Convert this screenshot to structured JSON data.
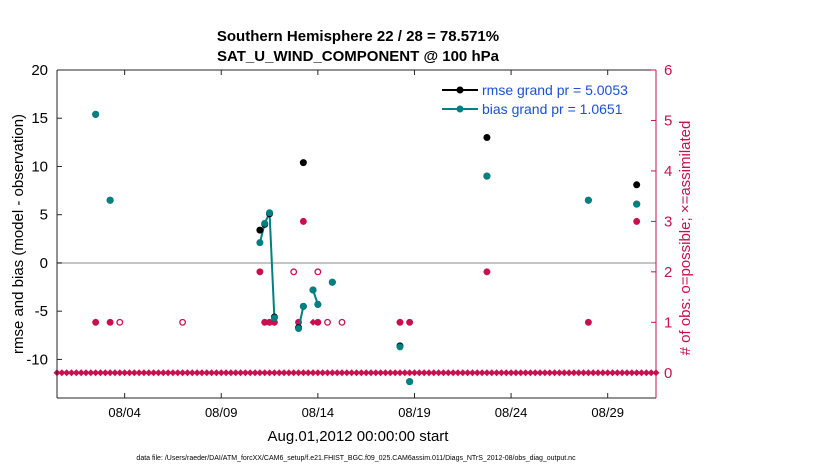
{
  "chart_data": {
    "type": "scatter",
    "title": "Southern Hemisphere 22 / 28 = 78.571%",
    "subtitle": "SAT_U_WIND_COMPONENT @ 100 hPa",
    "xlabel": "Aug.01,2012 00:00:00 start",
    "ylabel": "rmse and bias (model - observation)",
    "ylabel_right": "# of obs: o=possible; ×=assimilated",
    "xlim": [
      0.5,
      31.5
    ],
    "ylim": [
      -14,
      20
    ],
    "ylim_right": [
      -0.5,
      6
    ],
    "x_ticks": [
      4,
      9,
      14,
      19,
      24,
      29
    ],
    "x_tick_labels": [
      "08/04",
      "08/09",
      "08/14",
      "08/19",
      "08/24",
      "08/29"
    ],
    "y_ticks": [
      -10,
      -5,
      0,
      5,
      10,
      15,
      20
    ],
    "y_ticks_right": [
      0,
      1,
      2,
      3,
      4,
      5,
      6
    ],
    "zero_line": 0,
    "legend_position": "top-right",
    "colors": {
      "rmse": "#000000",
      "bias": "#008080",
      "obs": "#c8104e",
      "legend_text": "#1b4fd8",
      "zero_line": "#b0b0b0"
    },
    "series": [
      {
        "name": "rmse grand pr = 5.0053",
        "points": [
          [
            2.5,
            15.4
          ],
          [
            3.25,
            6.5
          ],
          [
            11.0,
            3.4
          ],
          [
            11.25,
            4.0
          ],
          [
            11.5,
            5.1
          ],
          [
            11.75,
            -5.6
          ],
          [
            13.0,
            -6.7
          ],
          [
            13.25,
            10.4
          ],
          [
            13.25,
            -4.5
          ],
          [
            13.75,
            -2.8
          ],
          [
            14.0,
            -4.3
          ],
          [
            14.75,
            -2.0
          ],
          [
            18.25,
            -8.6
          ],
          [
            18.75,
            -12.3
          ],
          [
            22.75,
            13.0
          ],
          [
            22.75,
            9.0
          ],
          [
            28.0,
            6.5
          ],
          [
            30.5,
            8.1
          ],
          [
            30.5,
            6.1
          ]
        ]
      },
      {
        "name": "bias grand pr = 1.0651",
        "points": [
          [
            2.5,
            15.4
          ],
          [
            3.25,
            6.5
          ],
          [
            11.0,
            2.1
          ],
          [
            11.25,
            4.1
          ],
          [
            11.5,
            5.2
          ],
          [
            11.75,
            -5.7
          ],
          [
            13.0,
            -6.8
          ],
          [
            13.25,
            -4.5
          ],
          [
            13.75,
            -2.8
          ],
          [
            14.0,
            -4.3
          ],
          [
            14.75,
            -2.0
          ],
          [
            18.25,
            -8.7
          ],
          [
            18.75,
            -12.3
          ],
          [
            22.75,
            9.0
          ],
          [
            28.0,
            6.5
          ],
          [
            30.5,
            6.1
          ]
        ],
        "line_segments": [
          [
            [
              11.0,
              2.1
            ],
            [
              11.25,
              4.1
            ],
            [
              11.5,
              5.2
            ],
            [
              11.75,
              -5.7
            ]
          ],
          [
            [
              13.0,
              -6.8
            ],
            [
              13.25,
              -4.5
            ]
          ],
          [
            [
              13.75,
              -2.8
            ],
            [
              14.0,
              -4.3
            ]
          ]
        ]
      }
    ],
    "possible_obs": [
      [
        2.5,
        1
      ],
      [
        3.25,
        1
      ],
      [
        3.75,
        1
      ],
      [
        7.0,
        1
      ],
      [
        11.0,
        2
      ],
      [
        11.25,
        1
      ],
      [
        11.5,
        1
      ],
      [
        11.75,
        1
      ],
      [
        12.75,
        2
      ],
      [
        13.0,
        1
      ],
      [
        13.25,
        3
      ],
      [
        14.0,
        2
      ],
      [
        14.0,
        1
      ],
      [
        14.5,
        1
      ],
      [
        15.25,
        1
      ],
      [
        18.25,
        1
      ],
      [
        18.75,
        1
      ],
      [
        22.75,
        2
      ],
      [
        28.0,
        1
      ],
      [
        30.5,
        3
      ]
    ],
    "assimilated_obs": [
      [
        2.5,
        1
      ],
      [
        3.25,
        1
      ],
      [
        11.0,
        2
      ],
      [
        11.25,
        1
      ],
      [
        11.5,
        1
      ],
      [
        11.75,
        1
      ],
      [
        13.0,
        1
      ],
      [
        13.25,
        3
      ],
      [
        13.75,
        1
      ],
      [
        14.0,
        1
      ],
      [
        18.25,
        1
      ],
      [
        18.75,
        1
      ],
      [
        22.75,
        2
      ],
      [
        28.0,
        1
      ],
      [
        30.5,
        3
      ]
    ],
    "assimilated_zero_range": [
      0.5,
      31.5
    ]
  },
  "footer": "data file: /Users/raeder/DAI/ATM_forcXX/CAM6_setup/f.e21.FHIST_BGC.f09_025.CAM6assim.011/Diags_NTrS_2012-08/obs_diag_output.nc"
}
